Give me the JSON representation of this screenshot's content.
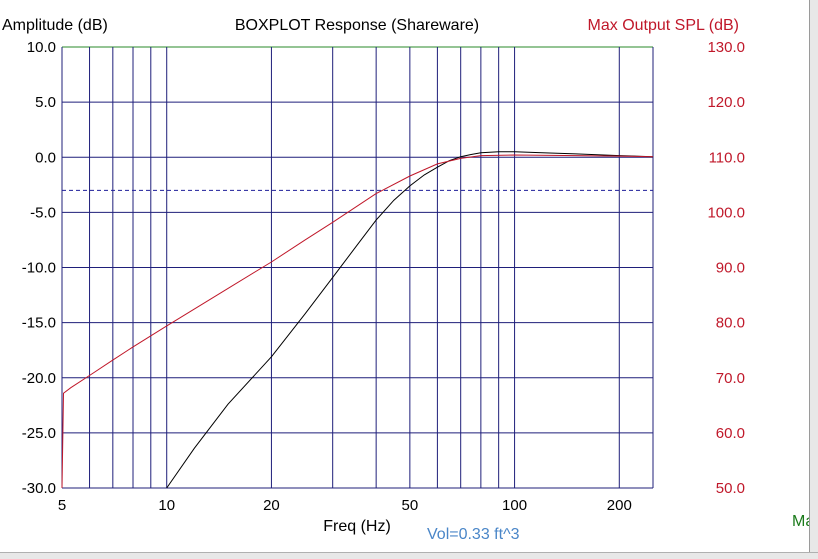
{
  "colors": {
    "background": "#ffffff",
    "grid": "#1f1f7a",
    "top_border": "#2a8a2a",
    "response_curve": "#000000",
    "spl_curve": "#c0182a",
    "left_axis_text": "#000000",
    "right_axis_text": "#c0182a",
    "vol_text": "#4a86c8",
    "edge_label": "#1a7a1a",
    "minus3_line": "#1f1f9a"
  },
  "chart_data": {
    "type": "line",
    "title": "BOXPLOT  Response (Shareware)",
    "xlabel": "Freq (Hz)",
    "ylabel": "Amplitude (dB)",
    "y2label": "Max Output SPL (dB)",
    "annotation": "Vol=0.33 ft^3",
    "edge_label": "Ma",
    "x_scale": "log",
    "xlim": [
      5,
      250
    ],
    "ylim": [
      -30,
      10
    ],
    "y2lim": [
      50,
      130
    ],
    "grid": true,
    "x_ticks": [
      5,
      10,
      20,
      50,
      100,
      200
    ],
    "x_tick_labels": [
      "5",
      "10",
      "20",
      "50",
      "100",
      "200"
    ],
    "x_gridlines": [
      5,
      6,
      7,
      8,
      9,
      10,
      20,
      30,
      40,
      50,
      60,
      70,
      80,
      90,
      100,
      200
    ],
    "y_ticks": [
      10,
      5,
      0,
      -5,
      -10,
      -15,
      -20,
      -25,
      -30
    ],
    "y_tick_labels": [
      "10.0",
      "5.0",
      "0.0",
      "-5.0",
      "-10.0",
      "-15.0",
      "-20.0",
      "-25.0",
      "-30.0"
    ],
    "y2_ticks": [
      130,
      120,
      110,
      100,
      90,
      80,
      70,
      60,
      50
    ],
    "y2_tick_labels": [
      "130.0",
      "120.0",
      "110.0",
      "100.0",
      "90.0",
      "80.0",
      "70.0",
      "60.0",
      "50.0"
    ],
    "reference_line": {
      "y": -3,
      "style": "dashed"
    },
    "series": [
      {
        "axis": "left",
        "x": [
          10,
          12,
          15,
          20,
          25,
          30,
          35,
          40,
          45,
          50,
          55,
          60,
          65,
          70,
          75,
          80,
          90,
          100,
          120,
          150,
          200,
          250
        ],
        "values": [
          -30,
          -26.4,
          -22.4,
          -18.1,
          -14.2,
          -10.9,
          -8.1,
          -5.7,
          -3.9,
          -2.6,
          -1.6,
          -0.9,
          -0.3,
          0.05,
          0.25,
          0.4,
          0.5,
          0.5,
          0.4,
          0.3,
          0.15,
          0.05
        ]
      },
      {
        "axis": "left",
        "x": [
          5,
          5.05,
          5.3,
          6,
          7,
          8,
          10,
          15,
          20,
          25,
          30,
          40,
          50,
          60,
          70,
          80,
          100,
          150,
          200,
          250
        ],
        "values": [
          -30,
          -21.4,
          -20.9,
          -19.8,
          -18.4,
          -17.2,
          -15.3,
          -11.9,
          -9.5,
          -7.5,
          -5.9,
          -3.3,
          -1.7,
          -0.6,
          -0.1,
          0.15,
          0.2,
          0.15,
          0.1,
          0.05
        ]
      }
    ]
  }
}
